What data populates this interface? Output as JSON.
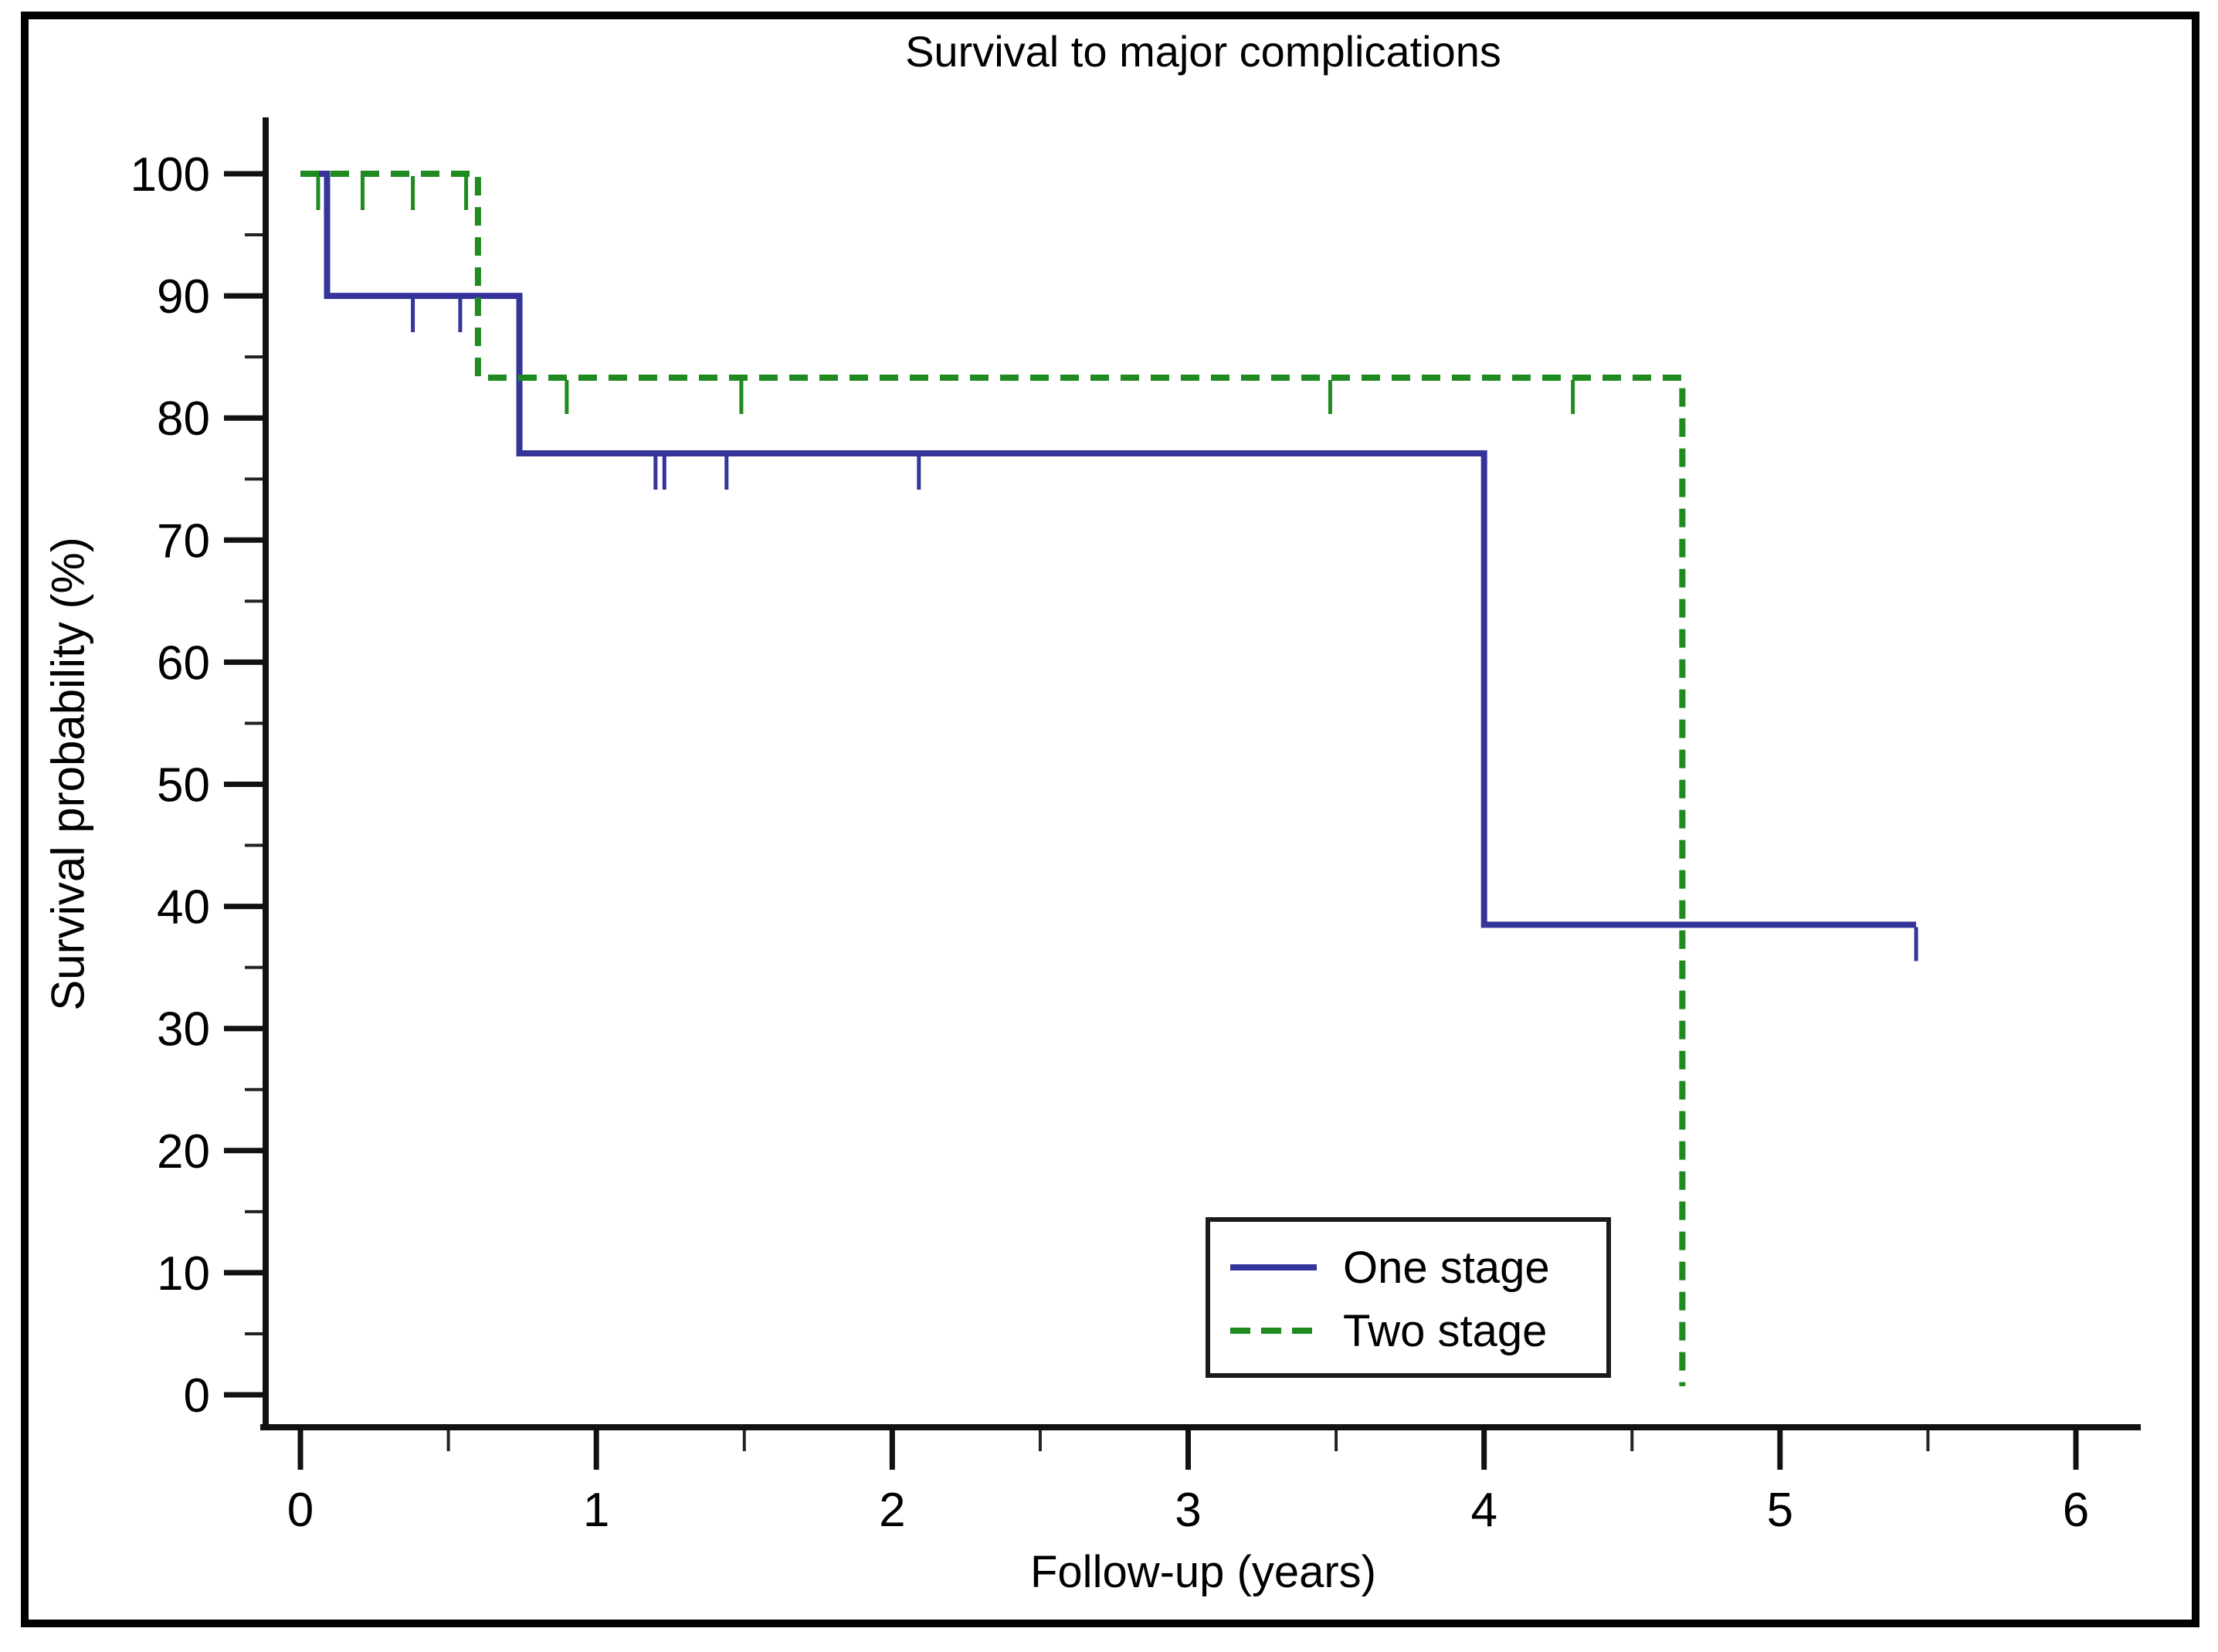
{
  "chart_data": {
    "type": "line",
    "subtype": "kaplan-meier-step",
    "title": "Survival to major complications",
    "xlabel": "Follow-up (years)",
    "ylabel": "Survival probability (%)",
    "xlim": [
      0,
      6
    ],
    "ylim": [
      0,
      100
    ],
    "grid": false,
    "legend_position": "lower right",
    "x_axis": {
      "major_ticks": [
        0,
        1,
        2,
        3,
        4,
        5,
        6
      ],
      "major_tick_labels": [
        "0",
        "1",
        "2",
        "3",
        "4",
        "5",
        "6"
      ],
      "minor_ticks": [
        0.5,
        1.5,
        2.5,
        3.5,
        4.5,
        5.5
      ]
    },
    "y_axis": {
      "major_ticks": [
        100,
        90,
        80,
        70,
        60,
        50,
        40,
        30,
        20,
        10,
        0
      ],
      "major_tick_labels": [
        "100",
        "90",
        "80",
        "70",
        "60",
        "50",
        "40",
        "30",
        "20",
        "10",
        "0"
      ],
      "minor_ticks": [
        95,
        85,
        75,
        65,
        55,
        45,
        35,
        25,
        15,
        5
      ]
    },
    "series": [
      {
        "name": "One stage",
        "color": "#34349B",
        "style": "solid",
        "steps": [
          [
            0,
            100
          ],
          [
            0.09,
            100
          ],
          [
            0.09,
            90
          ],
          [
            0.74,
            90
          ],
          [
            0.74,
            77.1
          ],
          [
            4.0,
            77.1
          ],
          [
            4.0,
            38.5
          ],
          [
            5.46,
            38.5
          ]
        ],
        "censor_ticks": [
          [
            0.38,
            90
          ],
          [
            0.54,
            90
          ],
          [
            1.2,
            77.1
          ],
          [
            1.23,
            77.1
          ],
          [
            1.44,
            77.1
          ],
          [
            2.09,
            77.1
          ],
          [
            5.46,
            38.5
          ]
        ]
      },
      {
        "name": "Two stage",
        "color": "#1F8A1F",
        "style": "dashed",
        "steps": [
          [
            0,
            100
          ],
          [
            0.6,
            100
          ],
          [
            0.6,
            83.3
          ],
          [
            4.67,
            83.3
          ],
          [
            4.67,
            0.7
          ]
        ],
        "censor_ticks": [
          [
            0.06,
            100
          ],
          [
            0.21,
            100
          ],
          [
            0.38,
            100
          ],
          [
            0.56,
            100
          ],
          [
            0.9,
            83.3
          ],
          [
            1.49,
            83.3
          ],
          [
            3.48,
            83.3
          ],
          [
            4.3,
            83.3
          ]
        ]
      }
    ]
  }
}
